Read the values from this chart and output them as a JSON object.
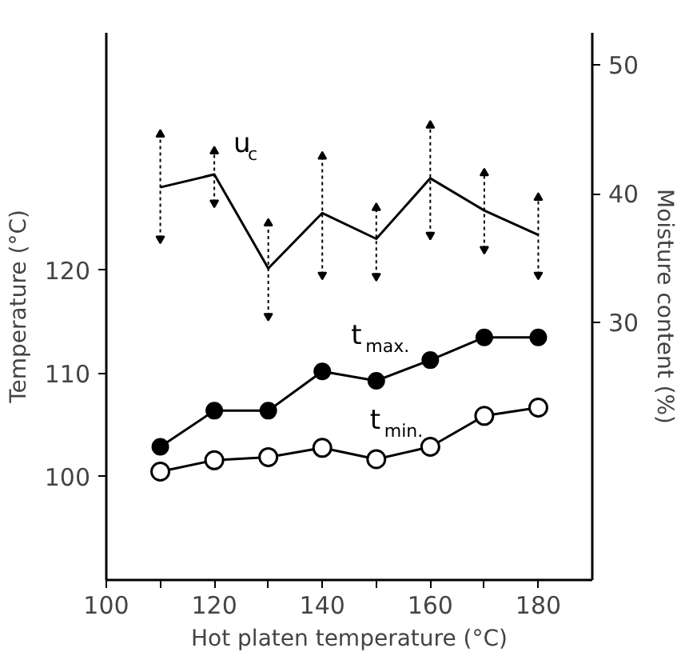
{
  "chart_data": {
    "type": "line",
    "xlabel": "Hot platen temperature (°C)",
    "ylabel": "Temperature (°C)",
    "y2label": "Moisture content (%)",
    "x": [
      110,
      120,
      130,
      140,
      150,
      160,
      170,
      180
    ],
    "series": [
      {
        "name": "u$_{c}$",
        "color": "#000000",
        "axis": "y2",
        "marker": "none",
        "values": [
          40.5,
          41.5,
          34.2,
          38.5,
          36.5,
          41.2,
          38.7,
          36.8
        ],
        "errors": [
          [
            36.5,
            44.6
          ],
          [
            39.3,
            43.3
          ],
          [
            30.5,
            37.7
          ],
          [
            33.7,
            42.9
          ],
          [
            33.6,
            38.9
          ],
          [
            36.8,
            45.3
          ],
          [
            35.7,
            41.6
          ],
          [
            33.7,
            39.7
          ]
        ]
      },
      {
        "name": "t$_{max.}$",
        "color": "#000000",
        "marker": "circle",
        "values": [
          102.9,
          106.4,
          106.4,
          110.2,
          109.3,
          111.3,
          113.5,
          113.5
        ]
      },
      {
        "name": "t$_{min.}$",
        "color": "#000000",
        "marker": "circle_open",
        "values": [
          100.5,
          101.6,
          101.9,
          102.8,
          101.7,
          102.9,
          105.9,
          106.7
        ]
      }
    ],
    "xlim": [
      100,
      190
    ],
    "xticks": [
      100,
      {
        "value": 110,
        "label": null
      },
      120,
      {
        "value": 130,
        "label": null
      },
      140,
      {
        "value": 150,
        "label": null
      },
      160,
      {
        "value": 170,
        "label": null
      },
      180
    ],
    "ylim": [
      90,
      143
    ],
    "yticks": [
      100,
      110,
      120
    ],
    "y2lim": [
      10,
      52.5
    ],
    "y2ticks": [
      30,
      40,
      50
    ],
    "grid": false
  }
}
